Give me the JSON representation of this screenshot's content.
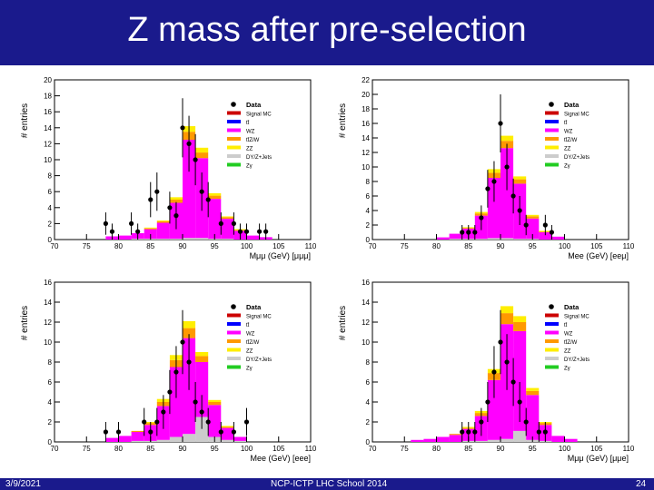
{
  "slide": {
    "title": "Z mass after pre-selection",
    "footer_date": "3/9/2021",
    "footer_center": "NCP-ICTP LHC School 2014",
    "page_number": "24"
  },
  "colors": {
    "title_bar": "#1a1a8c",
    "stack": {
      "DY/Z+Jets": "#cccccc",
      "Zgamma": "#22cc22",
      "ZZ": "#ffee00",
      "ttZ/W": "#ff9900",
      "WZ": "#ff00ff",
      "ttbar": "#0000ff",
      "Signal MC": "#cc0000"
    },
    "data_marker": "#000000"
  },
  "legend": [
    "Data",
    "Signal MC",
    "tt̄",
    "WZ",
    "tt̄Z/W",
    "ZZ",
    "DY/Z+Jets",
    "Zγ"
  ],
  "legend_keys": [
    "data",
    "signal",
    "ttbar",
    "wz",
    "ttzw",
    "zz",
    "dy",
    "zgamma"
  ],
  "ylabel": "# entries",
  "chart_data": [
    {
      "type": "bar",
      "stacked": true,
      "channel": "μμμ",
      "xlabel": "Mμμ (GeV) [μμμ]",
      "ylabel": "# entries",
      "xlim": [
        70,
        110
      ],
      "ylim": [
        0,
        20
      ],
      "x_ticks": [
        70,
        75,
        80,
        85,
        90,
        95,
        100,
        105,
        110
      ],
      "y_ticks": [
        0,
        2,
        4,
        6,
        8,
        10,
        12,
        14,
        16,
        18,
        20
      ],
      "bin_edges": [
        78,
        80,
        82,
        84,
        86,
        88,
        90,
        92,
        94,
        96,
        98,
        100,
        102,
        104
      ],
      "series": [
        {
          "name": "DY/Z+Jets",
          "values": [
            0,
            0,
            0.1,
            0.1,
            0.1,
            0.1,
            0.2,
            0.2,
            0.1,
            0.1,
            0,
            0,
            0
          ]
        },
        {
          "name": "WZ",
          "values": [
            0.4,
            0.5,
            0.7,
            1.2,
            2.0,
            4.5,
            12.3,
            10.0,
            5.0,
            2.5,
            1.1,
            0.5,
            0.3
          ]
        },
        {
          "name": "ttZ/W",
          "values": [
            0,
            0,
            0,
            0.1,
            0.2,
            0.4,
            1.0,
            0.7,
            0.4,
            0.2,
            0.1,
            0,
            0
          ]
        },
        {
          "name": "ZZ",
          "values": [
            0,
            0,
            0,
            0.1,
            0.1,
            0.3,
            0.7,
            0.6,
            0.3,
            0.1,
            0.1,
            0,
            0
          ]
        }
      ],
      "data_points": [
        {
          "x": 78,
          "y": 2,
          "err": 1.4
        },
        {
          "x": 79,
          "y": 1,
          "err": 1.0
        },
        {
          "x": 82,
          "y": 2,
          "err": 1.4
        },
        {
          "x": 83,
          "y": 1,
          "err": 1.0
        },
        {
          "x": 85,
          "y": 5,
          "err": 2.2
        },
        {
          "x": 86,
          "y": 6,
          "err": 2.4
        },
        {
          "x": 88,
          "y": 4,
          "err": 2.0
        },
        {
          "x": 89,
          "y": 3,
          "err": 1.7
        },
        {
          "x": 90,
          "y": 14,
          "err": 3.7
        },
        {
          "x": 91,
          "y": 12,
          "err": 3.5
        },
        {
          "x": 92,
          "y": 10,
          "err": 3.2
        },
        {
          "x": 93,
          "y": 6,
          "err": 2.4
        },
        {
          "x": 94,
          "y": 5,
          "err": 2.2
        },
        {
          "x": 96,
          "y": 2,
          "err": 1.4
        },
        {
          "x": 98,
          "y": 2,
          "err": 1.4
        },
        {
          "x": 99,
          "y": 1,
          "err": 1.0
        },
        {
          "x": 100,
          "y": 1,
          "err": 1.0
        },
        {
          "x": 102,
          "y": 1,
          "err": 1.0
        },
        {
          "x": 103,
          "y": 1,
          "err": 1.0
        }
      ]
    },
    {
      "type": "bar",
      "stacked": true,
      "channel": "eeμ",
      "xlabel": "Mee (GeV) [eeμ]",
      "ylabel": "# entries",
      "xlim": [
        70,
        110
      ],
      "ylim": [
        0,
        22
      ],
      "x_ticks": [
        70,
        75,
        80,
        85,
        90,
        95,
        100,
        105,
        110
      ],
      "y_ticks": [
        0,
        2,
        4,
        6,
        8,
        10,
        12,
        14,
        16,
        18,
        20,
        22
      ],
      "bin_edges": [
        80,
        82,
        84,
        86,
        88,
        90,
        92,
        94,
        96,
        98,
        100
      ],
      "series": [
        {
          "name": "DY/Z+Jets",
          "values": [
            0,
            0.1,
            0.1,
            0.1,
            0.2,
            0.2,
            0.1,
            0.1,
            0,
            0
          ]
        },
        {
          "name": "WZ",
          "values": [
            0.3,
            0.7,
            1.4,
            3.2,
            8.3,
            12.4,
            7.6,
            2.8,
            1.0,
            0.4
          ]
        },
        {
          "name": "ttZ/W",
          "values": [
            0,
            0,
            0.1,
            0.3,
            0.7,
            1.0,
            0.6,
            0.3,
            0.1,
            0
          ]
        },
        {
          "name": "ZZ",
          "values": [
            0,
            0,
            0.1,
            0.2,
            0.5,
            0.7,
            0.4,
            0.2,
            0.1,
            0
          ]
        }
      ],
      "data_points": [
        {
          "x": 84,
          "y": 1,
          "err": 1.0
        },
        {
          "x": 85,
          "y": 1,
          "err": 1.0
        },
        {
          "x": 86,
          "y": 1,
          "err": 1.0
        },
        {
          "x": 87,
          "y": 3,
          "err": 1.7
        },
        {
          "x": 88,
          "y": 7,
          "err": 2.6
        },
        {
          "x": 89,
          "y": 8,
          "err": 2.8
        },
        {
          "x": 90,
          "y": 16,
          "err": 4.0
        },
        {
          "x": 91,
          "y": 10,
          "err": 3.2
        },
        {
          "x": 92,
          "y": 6,
          "err": 2.4
        },
        {
          "x": 93,
          "y": 4,
          "err": 2.0
        },
        {
          "x": 94,
          "y": 2,
          "err": 1.4
        },
        {
          "x": 97,
          "y": 2,
          "err": 1.4
        },
        {
          "x": 98,
          "y": 1,
          "err": 1.0
        }
      ]
    },
    {
      "type": "bar",
      "stacked": true,
      "channel": "eee",
      "xlabel": "Mee (GeV) [eee]",
      "ylabel": "# entries",
      "xlim": [
        70,
        110
      ],
      "ylim": [
        0,
        16
      ],
      "x_ticks": [
        70,
        75,
        80,
        85,
        90,
        95,
        100,
        105,
        110
      ],
      "y_ticks": [
        0,
        2,
        4,
        6,
        8,
        10,
        12,
        14,
        16
      ],
      "bin_edges": [
        78,
        80,
        82,
        84,
        86,
        88,
        90,
        92,
        94,
        96,
        98,
        100
      ],
      "series": [
        {
          "name": "DY/Z+Jets",
          "values": [
            0,
            0,
            0.1,
            0.1,
            0.2,
            0.5,
            0.8,
            2.5,
            0.5,
            0.2,
            0.1
          ]
        },
        {
          "name": "WZ",
          "values": [
            0.4,
            0.6,
            0.9,
            1.6,
            3.4,
            7.0,
            9.6,
            5.5,
            3.2,
            1.2,
            0.4
          ]
        },
        {
          "name": "ttZ/W",
          "values": [
            0,
            0,
            0.1,
            0.2,
            0.4,
            0.7,
            1.0,
            0.6,
            0.3,
            0.1,
            0
          ]
        },
        {
          "name": "ZZ",
          "values": [
            0,
            0,
            0,
            0.1,
            0.3,
            0.5,
            0.7,
            0.4,
            0.2,
            0.1,
            0
          ]
        }
      ],
      "data_points": [
        {
          "x": 78,
          "y": 1,
          "err": 1.0
        },
        {
          "x": 80,
          "y": 1,
          "err": 1.0
        },
        {
          "x": 84,
          "y": 2,
          "err": 1.4
        },
        {
          "x": 85,
          "y": 1,
          "err": 1.0
        },
        {
          "x": 86,
          "y": 2,
          "err": 1.4
        },
        {
          "x": 87,
          "y": 3,
          "err": 1.7
        },
        {
          "x": 88,
          "y": 5,
          "err": 2.2
        },
        {
          "x": 89,
          "y": 7,
          "err": 2.6
        },
        {
          "x": 90,
          "y": 10,
          "err": 3.2
        },
        {
          "x": 91,
          "y": 8,
          "err": 2.8
        },
        {
          "x": 92,
          "y": 4,
          "err": 2.0
        },
        {
          "x": 93,
          "y": 3,
          "err": 1.7
        },
        {
          "x": 94,
          "y": 2,
          "err": 1.4
        },
        {
          "x": 96,
          "y": 1,
          "err": 1.0
        },
        {
          "x": 98,
          "y": 1,
          "err": 1.0
        },
        {
          "x": 100,
          "y": 2,
          "err": 1.4
        }
      ]
    },
    {
      "type": "bar",
      "stacked": true,
      "channel": "μμe",
      "xlabel": "Mμμ (GeV) [μμe]",
      "ylabel": "# entries",
      "xlim": [
        70,
        110
      ],
      "ylim": [
        0,
        16
      ],
      "x_ticks": [
        70,
        75,
        80,
        85,
        90,
        95,
        100,
        105,
        110
      ],
      "y_ticks": [
        0,
        2,
        4,
        6,
        8,
        10,
        12,
        14,
        16
      ],
      "bin_edges": [
        76,
        78,
        80,
        82,
        84,
        86,
        88,
        90,
        92,
        94,
        96,
        98,
        100,
        102
      ],
      "series": [
        {
          "name": "DY/Z+Jets",
          "values": [
            0,
            0,
            0,
            0,
            0.1,
            0.1,
            0.2,
            0.3,
            1.1,
            0.2,
            0.1,
            0,
            0
          ]
        },
        {
          "name": "WZ",
          "values": [
            0.2,
            0.3,
            0.5,
            0.7,
            1.2,
            2.5,
            6.0,
            11.5,
            10.0,
            4.5,
            1.6,
            0.6,
            0.3
          ]
        },
        {
          "name": "ttZ/W",
          "values": [
            0,
            0,
            0,
            0.1,
            0.1,
            0.3,
            0.7,
            1.1,
            0.9,
            0.4,
            0.2,
            0,
            0
          ]
        },
        {
          "name": "ZZ",
          "values": [
            0,
            0,
            0,
            0,
            0.1,
            0.2,
            0.4,
            0.7,
            0.6,
            0.3,
            0.1,
            0,
            0
          ]
        }
      ],
      "data_points": [
        {
          "x": 84,
          "y": 1,
          "err": 1.0
        },
        {
          "x": 85,
          "y": 1,
          "err": 1.0
        },
        {
          "x": 86,
          "y": 1,
          "err": 1.0
        },
        {
          "x": 87,
          "y": 2,
          "err": 1.4
        },
        {
          "x": 88,
          "y": 4,
          "err": 2.0
        },
        {
          "x": 89,
          "y": 7,
          "err": 2.6
        },
        {
          "x": 90,
          "y": 10,
          "err": 3.2
        },
        {
          "x": 91,
          "y": 8,
          "err": 2.8
        },
        {
          "x": 92,
          "y": 6,
          "err": 2.4
        },
        {
          "x": 93,
          "y": 4,
          "err": 2.0
        },
        {
          "x": 94,
          "y": 2,
          "err": 1.4
        },
        {
          "x": 96,
          "y": 1,
          "err": 1.0
        },
        {
          "x": 97,
          "y": 1,
          "err": 1.0
        }
      ]
    }
  ]
}
